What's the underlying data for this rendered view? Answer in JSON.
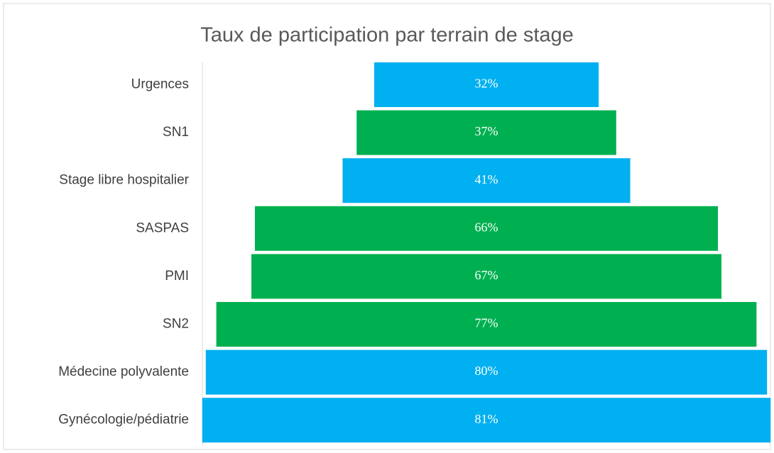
{
  "chart_data": {
    "type": "funnel",
    "title": "Taux de participation par terrain de stage",
    "categories": [
      "Urgences",
      "SN1",
      "Stage libre hospitalier",
      "SASPAS",
      "PMI",
      "SN2",
      "Médecine polyvalente",
      "Gynécologie/pédiatrie"
    ],
    "values": [
      32,
      37,
      41,
      66,
      67,
      77,
      80,
      81
    ],
    "value_labels": [
      "32%",
      "37%",
      "41%",
      "66%",
      "67%",
      "77%",
      "80%",
      "81%"
    ],
    "colors": [
      "#00b0f0",
      "#00b050",
      "#00b0f0",
      "#00b050",
      "#00b050",
      "#00b050",
      "#00b0f0",
      "#00b0f0"
    ]
  }
}
